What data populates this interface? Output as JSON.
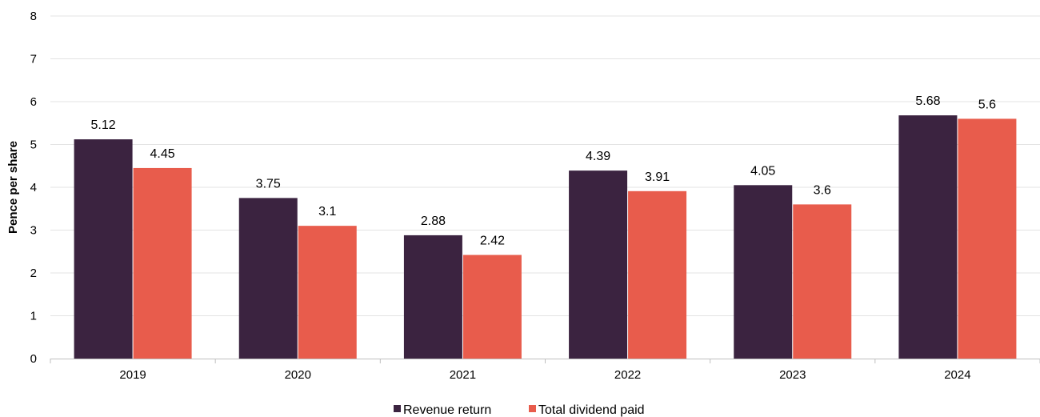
{
  "chart_data": {
    "type": "bar",
    "title": "",
    "xlabel": "",
    "ylabel": "Pence per share",
    "ylim": [
      0,
      8
    ],
    "yticks": [
      0,
      1,
      2,
      3,
      4,
      5,
      6,
      7,
      8
    ],
    "categories": [
      "2019",
      "2020",
      "2021",
      "2022",
      "2023",
      "2024"
    ],
    "series": [
      {
        "name": "Revenue return",
        "color": "#3b2340",
        "values": [
          5.12,
          3.75,
          2.88,
          4.39,
          4.05,
          5.68
        ],
        "labels": [
          "5.12",
          "3.75",
          "2.88",
          "4.39",
          "4.05",
          "5.68"
        ]
      },
      {
        "name": "Total dividend paid",
        "color": "#e85c4c",
        "values": [
          4.45,
          3.1,
          2.42,
          3.91,
          3.6,
          5.6
        ],
        "labels": [
          "4.45",
          "3.1",
          "2.42",
          "3.91",
          "3.6",
          "5.6"
        ]
      }
    ],
    "grid": true,
    "legend": "bottom"
  }
}
